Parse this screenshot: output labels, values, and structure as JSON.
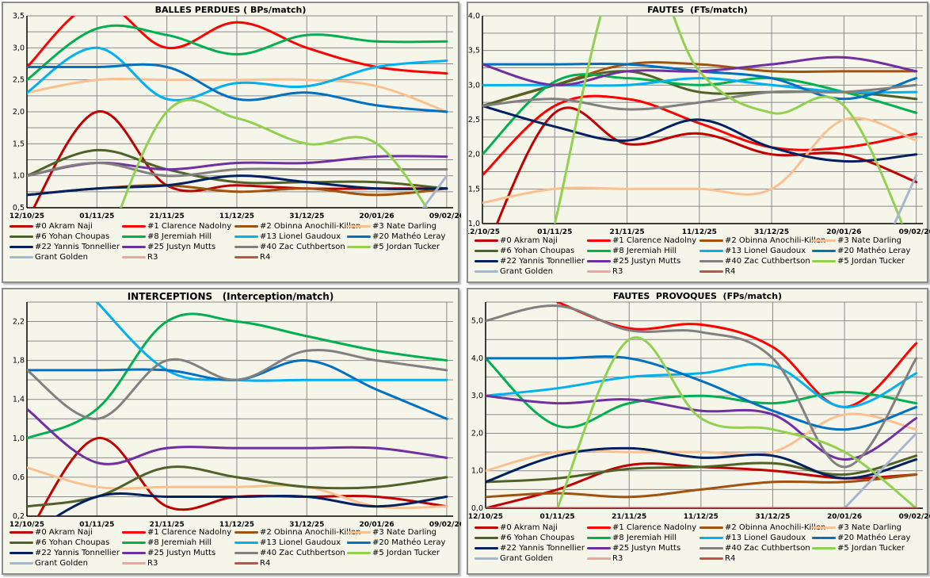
{
  "x_labels": [
    "12/10/25",
    "01/11/25",
    "21/11/25",
    "11/12/25",
    "31/12/25",
    "20/01/26",
    "09/02/26"
  ],
  "series_meta": [
    {
      "name": "#0 Akram Naji",
      "color": "#c00000"
    },
    {
      "name": "#1 Clarence Nadolny",
      "color": "#ff0000"
    },
    {
      "name": "#2 Obinna Anochili-Killen",
      "color": "#a0520f"
    },
    {
      "name": "#3 Nate Darling",
      "color": "#fac090"
    },
    {
      "name": "#6 Yohan Choupas",
      "color": "#4f6228"
    },
    {
      "name": "#8 Jeremiah Hill",
      "color": "#00b050"
    },
    {
      "name": "#13 Lionel Gaudoux",
      "color": "#00b0f0"
    },
    {
      "name": "#20 Mathéo Leray",
      "color": "#0070c0"
    },
    {
      "name": "#22 Yannis Tonnellier",
      "color": "#002060"
    },
    {
      "name": "#25 Justyn Mutts",
      "color": "#7030a0"
    },
    {
      "name": "#40 Zac Cuthbertson",
      "color": "#808080"
    },
    {
      "name": "#5 Jordan Tucker",
      "color": "#92d050"
    },
    {
      "name": "Grant Golden",
      "color": "#a6b6d0"
    },
    {
      "name": "R3",
      "color": "#e6a8a0"
    },
    {
      "name": "R4",
      "color": "#c0504d"
    }
  ],
  "chart_data": [
    {
      "type": "line",
      "title": "BALLES PERDUES ( BPs/match)",
      "xlabel": "",
      "ylabel": "",
      "ylim": [
        0.5,
        3.5
      ],
      "yticks": [
        "0,5",
        "1,0",
        "1,5",
        "2,0",
        "2,5",
        "3,0",
        "3,5"
      ],
      "yminor": 0.25,
      "grid": true,
      "legend": "bottom",
      "categories": [
        "12/10/25",
        "01/11/25",
        "21/11/25",
        "11/12/25",
        "31/12/25",
        "20/01/26",
        "09/02/26"
      ],
      "series": [
        {
          "name": "#0 Akram Naji",
          "values": [
            0.3,
            2.0,
            0.85,
            0.85,
            0.8,
            0.8,
            0.8
          ]
        },
        {
          "name": "#1 Clarence Nadolny",
          "values": [
            2.7,
            3.7,
            3.0,
            3.4,
            3.0,
            2.7,
            2.6
          ]
        },
        {
          "name": "#2 Obinna Anochili-Killen",
          "values": [
            0.7,
            0.8,
            0.85,
            0.75,
            0.8,
            0.7,
            0.8
          ]
        },
        {
          "name": "#3 Nate Darling",
          "values": [
            2.3,
            2.5,
            2.5,
            2.5,
            2.5,
            2.4,
            2.0
          ]
        },
        {
          "name": "#6 Yohan Choupas",
          "values": [
            1.0,
            1.4,
            1.1,
            0.9,
            0.9,
            0.9,
            0.8
          ]
        },
        {
          "name": "#8 Jeremiah Hill",
          "values": [
            2.5,
            3.3,
            3.2,
            2.9,
            3.2,
            3.1,
            3.1
          ]
        },
        {
          "name": "#13 Lionel Gaudoux",
          "values": [
            2.3,
            3.0,
            2.2,
            2.45,
            2.4,
            2.7,
            2.8
          ]
        },
        {
          "name": "#20 Mathéo Leray",
          "values": [
            2.7,
            2.7,
            2.7,
            2.2,
            2.3,
            2.1,
            2.0
          ]
        },
        {
          "name": "#22 Yannis Tonnellier",
          "values": [
            0.7,
            0.8,
            0.85,
            1.0,
            0.9,
            0.8,
            0.8
          ]
        },
        {
          "name": "#25 Justyn Mutts",
          "values": [
            1.0,
            1.2,
            1.1,
            1.2,
            1.2,
            1.3,
            1.3
          ]
        },
        {
          "name": "#40 Zac Cuthbertson",
          "values": [
            1.0,
            1.2,
            1.0,
            1.1,
            1.1,
            1.1,
            1.1
          ]
        },
        {
          "name": "#5 Jordan Tucker",
          "values": [
            null,
            -0.5,
            2.0,
            1.9,
            1.5,
            1.5,
            0.0
          ]
        },
        {
          "name": "Grant Golden",
          "values": [
            null,
            null,
            null,
            null,
            null,
            null,
            1.0
          ],
          "prev": {
            "x": 5.6,
            "y": 0.4
          }
        },
        {
          "name": "R3",
          "values": []
        },
        {
          "name": "R4",
          "values": []
        }
      ]
    },
    {
      "type": "line",
      "title": "FAUTES  (FTs/match)",
      "xlabel": "",
      "ylabel": "",
      "ylim": [
        1.0,
        4.0
      ],
      "yticks": [
        "1,0",
        "1,5",
        "2,0",
        "2,5",
        "3,0",
        "3,5",
        "4,0"
      ],
      "yminor": 0.25,
      "grid": true,
      "legend": "bottom",
      "categories": [
        "12/10/25",
        "01/11/25",
        "21/11/25",
        "11/12/25",
        "31/12/25",
        "20/01/26",
        "09/02/26"
      ],
      "series": [
        {
          "name": "#0 Akram Naji",
          "values": [
            0.5,
            2.6,
            2.15,
            2.3,
            2.0,
            2.0,
            1.6
          ]
        },
        {
          "name": "#1 Clarence Nadolny",
          "values": [
            1.7,
            2.7,
            2.8,
            2.45,
            2.1,
            2.1,
            2.3
          ]
        },
        {
          "name": "#2 Obinna Anochili-Killen",
          "values": [
            2.7,
            3.0,
            3.3,
            3.3,
            3.2,
            3.2,
            3.2
          ]
        },
        {
          "name": "#3 Nate Darling",
          "values": [
            1.3,
            1.5,
            1.5,
            1.5,
            1.5,
            2.5,
            2.2
          ]
        },
        {
          "name": "#6 Yohan Choupas",
          "values": [
            2.7,
            3.0,
            3.2,
            2.9,
            2.9,
            2.9,
            2.8
          ]
        },
        {
          "name": "#8 Jeremiah Hill",
          "values": [
            2.0,
            3.05,
            3.1,
            3.0,
            3.1,
            2.9,
            2.6
          ]
        },
        {
          "name": "#13 Lionel Gaudoux",
          "values": [
            3.0,
            3.0,
            3.0,
            3.1,
            3.0,
            2.9,
            2.9
          ]
        },
        {
          "name": "#20 Mathéo Leray",
          "values": [
            3.3,
            3.3,
            3.3,
            3.2,
            3.1,
            2.8,
            3.1
          ]
        },
        {
          "name": "#22 Yannis Tonnellier",
          "values": [
            2.7,
            2.4,
            2.2,
            2.5,
            2.1,
            1.9,
            2.0
          ]
        },
        {
          "name": "#25 Justyn Mutts",
          "values": [
            3.3,
            3.0,
            3.2,
            3.2,
            3.3,
            3.4,
            3.2
          ]
        },
        {
          "name": "#40 Zac Cuthbertson",
          "values": [
            2.7,
            2.8,
            2.65,
            2.75,
            2.9,
            2.9,
            3.0
          ]
        },
        {
          "name": "#5 Jordan Tucker",
          "values": [
            null,
            1.0,
            5.0,
            3.2,
            2.6,
            2.7,
            0.5
          ]
        },
        {
          "name": "Grant Golden",
          "values": [
            null,
            null,
            null,
            null,
            null,
            null,
            1.7
          ],
          "prev": {
            "x": 5.7,
            "y": 1.0
          }
        },
        {
          "name": "R3",
          "values": []
        },
        {
          "name": "R4",
          "values": []
        }
      ]
    },
    {
      "type": "line",
      "title": "INTERCEPTIONS   (Interception/match)",
      "xlabel": "",
      "ylabel": "",
      "ylim": [
        0.2,
        2.4
      ],
      "yticks": [
        "0,2",
        "0,6",
        "1,0",
        "1,4",
        "1,8",
        "2,2"
      ],
      "ytick_values": [
        0.2,
        0.6,
        1.0,
        1.4,
        1.8,
        2.2
      ],
      "yminor": 0.2,
      "grid": true,
      "legend": "bottom",
      "categories": [
        "12/10/25",
        "01/11/25",
        "21/11/25",
        "11/12/25",
        "31/12/25",
        "20/01/26",
        "09/02/26"
      ],
      "series": [
        {
          "name": "#0 Akram Naji",
          "values": [
            0.0,
            1.0,
            0.3,
            0.4,
            0.4,
            0.4,
            0.3
          ]
        },
        {
          "name": "#1 Clarence Nadolny",
          "values": []
        },
        {
          "name": "#2 Obinna Anochili-Killen",
          "values": []
        },
        {
          "name": "#3 Nate Darling",
          "values": [
            0.7,
            0.5,
            0.5,
            0.5,
            0.5,
            0.3,
            0.3
          ]
        },
        {
          "name": "#6 Yohan Choupas",
          "values": [
            0.3,
            0.4,
            0.7,
            0.6,
            0.5,
            0.5,
            0.6
          ]
        },
        {
          "name": "#8 Jeremiah Hill",
          "values": [
            1.0,
            1.3,
            2.2,
            2.2,
            2.05,
            1.9,
            1.8
          ]
        },
        {
          "name": "#13 Lionel Gaudoux",
          "values": [
            null,
            2.4,
            1.7,
            1.6,
            1.6,
            1.6,
            1.6
          ]
        },
        {
          "name": "#20 Mathéo Leray",
          "values": [
            1.7,
            1.7,
            1.7,
            1.6,
            1.8,
            1.5,
            1.2
          ]
        },
        {
          "name": "#22 Yannis Tonnellier",
          "values": [
            0.0,
            0.4,
            0.4,
            0.4,
            0.4,
            0.3,
            0.4
          ]
        },
        {
          "name": "#25 Justyn Mutts",
          "values": [
            1.3,
            0.75,
            0.9,
            0.9,
            0.9,
            0.9,
            0.8
          ]
        },
        {
          "name": "#40 Zac Cuthbertson",
          "values": [
            1.7,
            1.2,
            1.8,
            1.6,
            1.9,
            1.8,
            1.7
          ]
        },
        {
          "name": "#5 Jordan Tucker",
          "values": []
        },
        {
          "name": "Grant Golden",
          "values": []
        },
        {
          "name": "R3",
          "values": []
        },
        {
          "name": "R4",
          "values": []
        }
      ]
    },
    {
      "type": "line",
      "title": "FAUTES  PROVOQUES  (FPs/match)",
      "xlabel": "",
      "ylabel": "",
      "ylim": [
        0.0,
        5.5
      ],
      "yticks": [
        "0,0",
        "1,0",
        "2,0",
        "3,0",
        "4,0",
        "5,0"
      ],
      "ytick_values": [
        0,
        1,
        2,
        3,
        4,
        5
      ],
      "yminor": 0.5,
      "grid": true,
      "legend": "bottom",
      "categories": [
        "12/10/25",
        "01/11/25",
        "21/11/25",
        "11/12/25",
        "31/12/25",
        "20/01/26",
        "09/02/26"
      ],
      "series": [
        {
          "name": "#0 Akram Naji",
          "values": [
            0.0,
            0.5,
            1.15,
            1.1,
            1.0,
            0.8,
            0.9
          ]
        },
        {
          "name": "#1 Clarence Nadolny",
          "values": [
            null,
            5.5,
            4.8,
            4.9,
            4.3,
            2.7,
            4.4
          ]
        },
        {
          "name": "#2 Obinna Anochili-Killen",
          "values": [
            0.3,
            0.4,
            0.3,
            0.5,
            0.7,
            0.7,
            0.9
          ]
        },
        {
          "name": "#3 Nate Darling",
          "values": [
            1.0,
            1.5,
            1.5,
            1.5,
            1.5,
            2.5,
            2.1
          ]
        },
        {
          "name": "#6 Yohan Choupas",
          "values": [
            0.7,
            0.8,
            1.05,
            1.1,
            1.2,
            0.9,
            1.4
          ]
        },
        {
          "name": "#8 Jeremiah Hill",
          "values": [
            4.0,
            2.2,
            2.8,
            3.0,
            2.8,
            3.1,
            2.8
          ]
        },
        {
          "name": "#13 Lionel Gaudoux",
          "values": [
            3.0,
            3.2,
            3.5,
            3.6,
            3.8,
            2.7,
            3.6
          ]
        },
        {
          "name": "#20 Mathéo Leray",
          "values": [
            4.0,
            4.0,
            4.0,
            3.4,
            2.6,
            2.1,
            2.7
          ]
        },
        {
          "name": "#22 Yannis Tonnellier",
          "values": [
            0.7,
            1.4,
            1.6,
            1.35,
            1.4,
            0.8,
            1.3
          ]
        },
        {
          "name": "#25 Justyn Mutts",
          "values": [
            3.0,
            2.8,
            2.9,
            2.6,
            2.5,
            1.3,
            2.4
          ]
        },
        {
          "name": "#40 Zac Cuthbertson",
          "values": [
            5.0,
            5.4,
            4.75,
            4.7,
            4.0,
            1.1,
            4.0
          ]
        },
        {
          "name": "#5 Jordan Tucker",
          "values": [
            null,
            0.0,
            4.5,
            2.4,
            2.1,
            1.5,
            0.0
          ]
        },
        {
          "name": "Grant Golden",
          "values": [
            null,
            null,
            null,
            null,
            null,
            0.0,
            2.0
          ]
        },
        {
          "name": "R3",
          "values": []
        },
        {
          "name": "R4",
          "values": [
            0,
            0,
            0,
            0,
            0,
            0,
            0
          ]
        }
      ]
    }
  ]
}
